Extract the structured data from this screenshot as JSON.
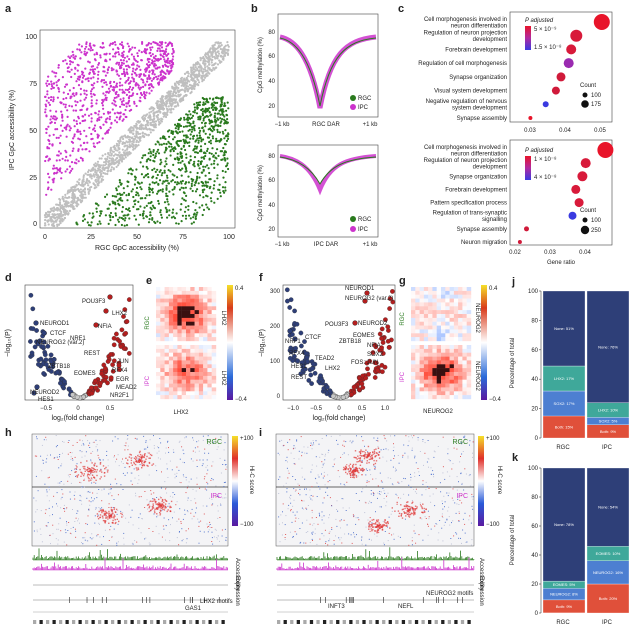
{
  "panel_labels": {
    "a": "a",
    "b": "b",
    "c": "c",
    "d": "d",
    "e": "e",
    "f": "f",
    "g": "g",
    "h": "h",
    "i": "i",
    "j": "j",
    "k": "k"
  },
  "colors": {
    "rgc": "#2a7a1e",
    "ipc": "#cc33cc",
    "gray": "#bfbfbf",
    "navy": "#2e3f78",
    "teal": "#3fa89a",
    "blue": "#4d7fd1",
    "red": "#e0503a",
    "darkred": "#b41e1e"
  },
  "a": {
    "xlabel": "RGC GpC accessibility (%)",
    "ylabel": "IPC GpC accessibility (%)",
    "xticks": [
      "0",
      "25",
      "50",
      "75",
      "100"
    ],
    "yticks": [
      "0",
      "25",
      "50",
      "75",
      "100"
    ]
  },
  "b": {
    "top": {
      "ylabel": "CpG methylation (%)",
      "xlabel": "RGC DAR",
      "xticks": [
        "−1 kb",
        "RGC DAR",
        "+1 kb"
      ],
      "yticks": [
        "20",
        "40",
        "60",
        "80"
      ],
      "legend": [
        "RGC",
        "IPC"
      ]
    },
    "bottom": {
      "ylabel": "CpG methylation (%)",
      "xlabel": "IPC DAR",
      "xticks": [
        "−1 kb",
        "IPC DAR",
        "+1 kb"
      ],
      "yticks": [
        "20",
        "40",
        "60",
        "80"
      ],
      "legend": [
        "RGC",
        "IPC"
      ]
    }
  },
  "c": {
    "top": {
      "terms": [
        "Cell morphogenesis involved in neuron differentiation",
        "Regulation of neuron projection development",
        "Forebrain development",
        "Regulation of cell morphogenesis",
        "Synapse organization",
        "Visual system development",
        "Negative regulation of nervous system development",
        "Synapse assembly"
      ],
      "padj_title": "P adjusted",
      "padj_labels": [
        "5 × 10⁻⁹",
        "1.5 × 10⁻⁸"
      ],
      "count_title": "Count",
      "count_labels": [
        "100",
        "175"
      ],
      "xticks": [
        "0.03",
        "0.04",
        "0.05"
      ]
    },
    "bottom": {
      "terms": [
        "Cell morphogenesis involved in neuron differentiation",
        "Regulation of neuron projection development",
        "Synapse organization",
        "Forebrain development",
        "Pattern specification process",
        "Regulation of trans-synaptic signalling",
        "Synapse assembly",
        "Neuron migration"
      ],
      "padj_title": "P adjusted",
      "padj_labels": [
        "1 × 10⁻⁸",
        "4 × 10⁻⁸"
      ],
      "count_title": "Count",
      "count_labels": [
        "100",
        "250"
      ],
      "xticks": [
        "0.02",
        "0.03",
        "0.04"
      ],
      "xlabel": "Gene ratio"
    }
  },
  "d": {
    "ylabel": "−log₁₀(P)",
    "xlabel": "log₂(fold change)",
    "xticks": [
      "−0.5",
      "0",
      "0.5"
    ],
    "genes": [
      "NEUROD1",
      "CTCF",
      "NEUROG2 (var.2)",
      "POU3F3",
      "LHX2",
      "NFIA",
      "NRF1",
      "REST",
      "ZBTB18",
      "EOMES",
      "HES1",
      "NEUROD2",
      "RFX4",
      "EGR",
      "MEAD2",
      "NR2F1",
      "JUN"
    ]
  },
  "e": {
    "label_rgc": "RGC",
    "label_ipc": "IPC",
    "motif": "LHX2",
    "cbar_max": "0.4",
    "cbar_min": "−0.4"
  },
  "f": {
    "ylabel": "−log₁₀(P)",
    "xlabel": "log₂(fold change)",
    "xticks": [
      "−1.0",
      "−0.5",
      "0",
      "0.5",
      "1.0"
    ],
    "yticks": [
      "0",
      "100",
      "200",
      "300"
    ],
    "genes": [
      "NEUROD1",
      "NEUROG2 (var.2)",
      "NEUROD2",
      "EOMES",
      "NFIA",
      "SOX2",
      "FOS::JUN",
      "POU3F3",
      "ZBTB18",
      "CTCF",
      "NRF1",
      "RFX4",
      "TEAD2",
      "LHX2",
      "HES1",
      "REST"
    ]
  },
  "g": {
    "label_rgc": "RGC",
    "label_ipc": "IPC",
    "motif": "NEUROG2",
    "cbar_max": "0.4",
    "cbar_min": "−0.4"
  },
  "h": {
    "rgc": "RGC",
    "ipc": "IPC",
    "cbar_title": "Hi-C score",
    "cbar_max": "+100",
    "cbar_min": "−100",
    "tracks": [
      "Accessibility",
      "Expression"
    ],
    "genes": [
      "GAS1",
      "LHX2 motifs"
    ]
  },
  "i": {
    "rgc": "RGC",
    "ipc": "IPC",
    "cbar_title": "Hi-C score",
    "cbar_max": "+100",
    "cbar_min": "−100",
    "tracks": [
      "Accessibility",
      "Expression"
    ],
    "genes": [
      "NEUROG2 motifs",
      "INFT3",
      "NEFL"
    ]
  },
  "j": {
    "ylabel": "Percentage of total",
    "categories": [
      "RGC",
      "IPC"
    ],
    "yticks": [
      "0",
      "20",
      "40",
      "60",
      "80",
      "100"
    ],
    "stacks": [
      {
        "name": "Both",
        "values": [
          15,
          9
        ]
      },
      {
        "name": "SOX2",
        "values": [
          17,
          5
        ]
      },
      {
        "name": "LHX2",
        "values": [
          17,
          10
        ]
      },
      {
        "name": "None",
        "values": [
          51,
          76
        ]
      }
    ],
    "labels": {
      "RGC": [
        "Both: 15%",
        "SOX2: 17%",
        "LHX2: 17%",
        "None: 51%"
      ],
      "IPC": [
        "Both: 9%",
        "SOX2: 5%",
        "LHX2: 10%",
        "None: 76%"
      ]
    }
  },
  "k": {
    "ylabel": "Percentage of total",
    "categories": [
      "RGC",
      "IPC"
    ],
    "yticks": [
      "0",
      "20",
      "40",
      "60",
      "80",
      "100"
    ],
    "stacks": [
      {
        "name": "Both",
        "values": [
          9,
          20
        ]
      },
      {
        "name": "NEUROG2",
        "values": [
          8,
          16
        ]
      },
      {
        "name": "EOMES",
        "values": [
          5,
          10
        ]
      },
      {
        "name": "None",
        "values": [
          78,
          54
        ]
      }
    ],
    "labels": {
      "RGC": [
        "Both: 9%",
        "NEUROG2: 8%",
        "EOMES: 5%",
        "None: 78%"
      ],
      "IPC": [
        "Both: 20%",
        "NEUROG2: 16%",
        "EOMES: 10%",
        "None: 54%"
      ]
    }
  }
}
